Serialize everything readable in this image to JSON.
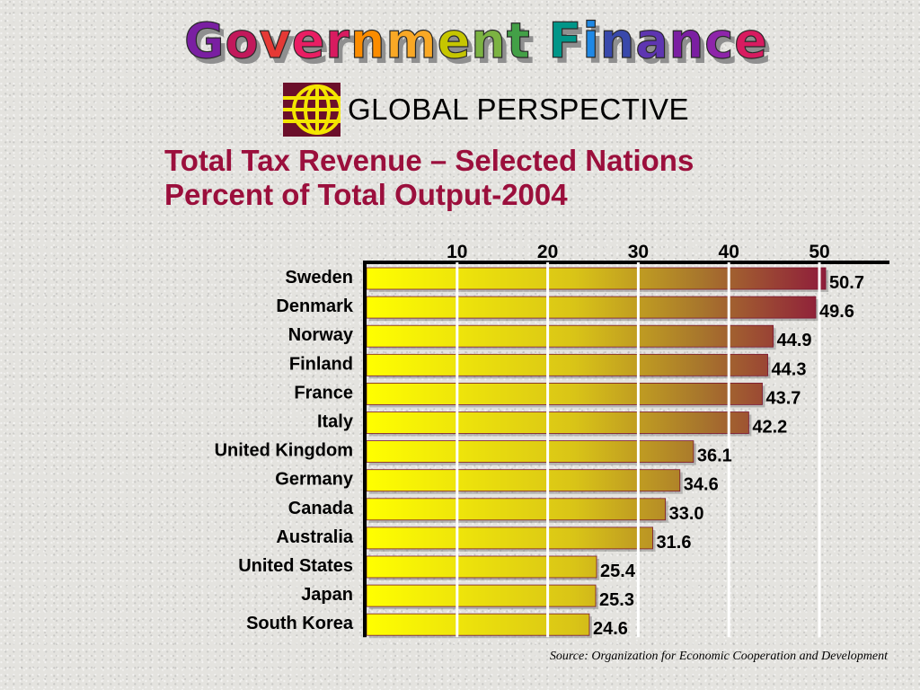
{
  "header": {
    "title": "Government Finance",
    "badge_text": "GLOBAL PERSPECTIVE"
  },
  "colors": {
    "title_letters": [
      "#7a1fa2",
      "#c2185b",
      "#e53935",
      "#e91e63",
      "#d81b60",
      "#fb8c00",
      "#f9a825",
      "#c6c600",
      "#7cb342",
      "#43a047",
      "#009688",
      "#1e88e5",
      "#3949ab",
      "#5e35b1",
      "#7b1fa2",
      "#8e24aa",
      "#d81b60",
      "#1565c0"
    ],
    "bar_start": "#ffff00",
    "bar_end": "#8e1a3b",
    "subtitle": "#9b0f3c",
    "logo_dark": "#6b0f2a",
    "logo_light": "#f4e600"
  },
  "chart_data": {
    "type": "bar",
    "orientation": "horizontal",
    "title": "Total Tax Revenue – Selected Nations",
    "subtitle": "Percent of Total Output-2004",
    "categories": [
      "Sweden",
      "Denmark",
      "Norway",
      "Finland",
      "France",
      "Italy",
      "United Kingdom",
      "Germany",
      "Canada",
      "Australia",
      "United States",
      "Japan",
      "South Korea"
    ],
    "values_display": [
      "50.7",
      "49.6",
      "44.9",
      "44.3",
      "43.7",
      "42.2",
      "36.1",
      "34.6",
      "33.0",
      "31.6",
      "25.4",
      "25.3",
      "24.6"
    ],
    "values": [
      50.7,
      49.6,
      44.9,
      44.3,
      43.7,
      42.2,
      36.1,
      34.6,
      33.0,
      31.6,
      25.4,
      25.3,
      24.6
    ],
    "xticks": [
      "10",
      "20",
      "30",
      "40",
      "50"
    ],
    "xtick_values": [
      10,
      20,
      30,
      40,
      50
    ],
    "xlim": [
      0,
      50.7
    ],
    "axis_position": "top",
    "grid": true,
    "xlabel": "",
    "ylabel": ""
  },
  "source": "Source: Organization for Economic Cooperation and Development"
}
